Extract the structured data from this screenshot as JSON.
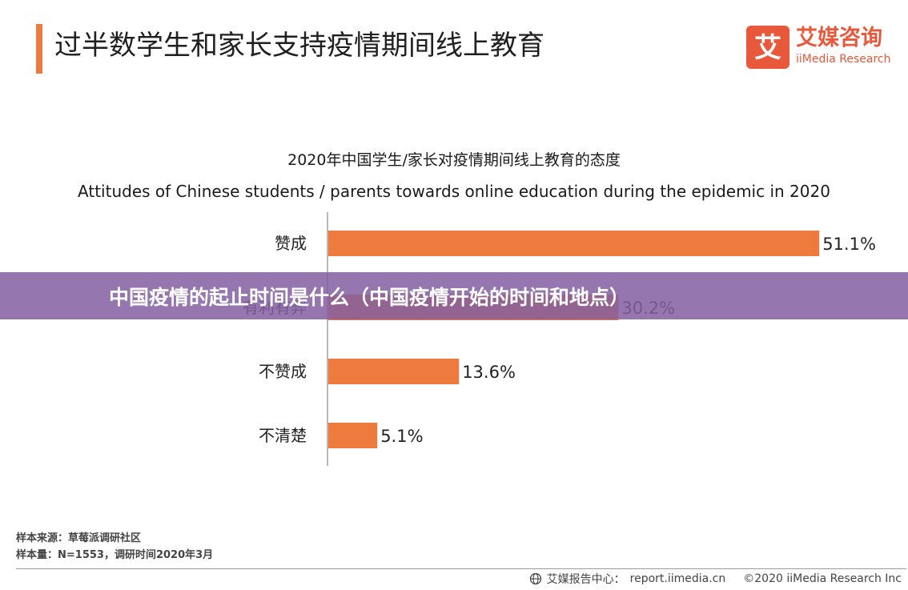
{
  "header": {
    "title": "过半数学生和家长支持疫情期间线上教育"
  },
  "logo": {
    "mark": "艾",
    "name_cn": "艾媒咨询",
    "name_en": "iiMedia Research",
    "color": "#e8583b"
  },
  "banner": {
    "text": "中国疫情的起止时间是什么（中国疫情开始的时间和地点）",
    "color": "#8460a1"
  },
  "chart_data": {
    "type": "bar",
    "orientation": "horizontal",
    "title": "2020年中国学生/家长对疫情期间线上教育的态度",
    "subtitle": "Attitudes of Chinese students / parents towards online education during the epidemic in 2020",
    "categories": [
      "赞成",
      "有利有弊",
      "不赞成",
      "不清楚"
    ],
    "values": [
      51.1,
      30.2,
      13.6,
      5.1
    ],
    "value_labels": [
      "51.1%",
      "30.2%",
      "13.6%",
      "5.1%"
    ],
    "unit": "%",
    "xlim": [
      0,
      65
    ],
    "grid": false,
    "legend": "none",
    "bar_color": "#ee7a3d"
  },
  "source": {
    "line1": "样本来源：草莓派调研社区",
    "line2": "样本量：N=1553，调研时间2020年3月"
  },
  "footer": {
    "brand": "艾媒报告中心：",
    "url": "report.iimedia.cn",
    "copyright": "©2020  iiMedia Research  Inc",
    "icon": "globe-icon"
  }
}
